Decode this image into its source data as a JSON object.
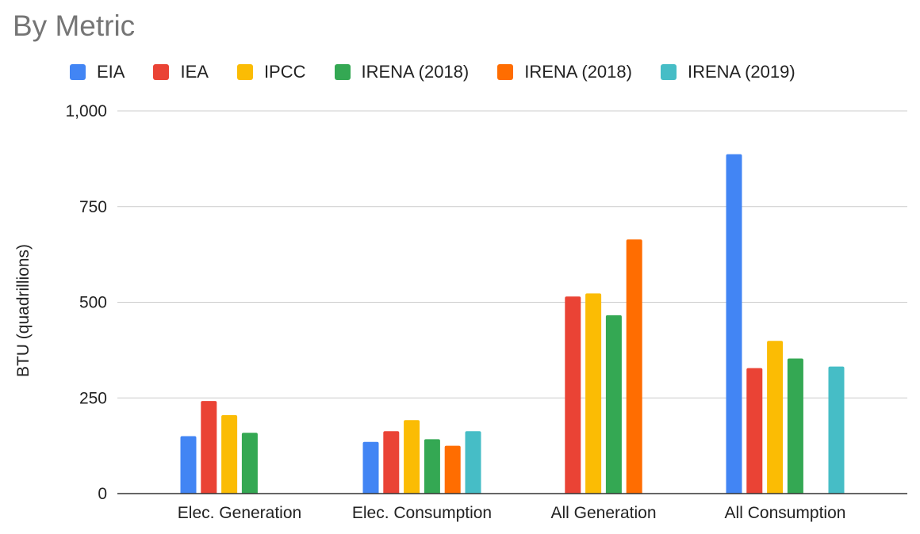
{
  "chart_data": {
    "type": "bar",
    "title": "By Metric",
    "xlabel": "",
    "ylabel": "BTU (quadrillions)",
    "ylim": [
      0,
      1000
    ],
    "yticks": [
      0,
      250,
      500,
      750,
      1000
    ],
    "ytick_labels": [
      "0",
      "250",
      "500",
      "750",
      "1,000"
    ],
    "grid": true,
    "legend_position": "top",
    "categories": [
      "Elec. Generation",
      "Elec. Consumption",
      "All Generation",
      "All Consumption"
    ],
    "series": [
      {
        "name": "EIA",
        "color": "#4285f4",
        "values": [
          150,
          135,
          null,
          887
        ]
      },
      {
        "name": "IEA",
        "color": "#ea4335",
        "values": [
          242,
          163,
          515,
          328
        ]
      },
      {
        "name": "IPCC",
        "color": "#fbbc04",
        "values": [
          205,
          192,
          523,
          399
        ]
      },
      {
        "name": "IRENA (2018)",
        "color": "#34a853",
        "values": [
          159,
          142,
          466,
          353
        ]
      },
      {
        "name": "IRENA (2018)",
        "color": "#ff6d01",
        "values": [
          null,
          125,
          664,
          null
        ]
      },
      {
        "name": "IRENA (2019)",
        "color": "#46bdc6",
        "values": [
          null,
          163,
          null,
          332
        ]
      }
    ]
  }
}
